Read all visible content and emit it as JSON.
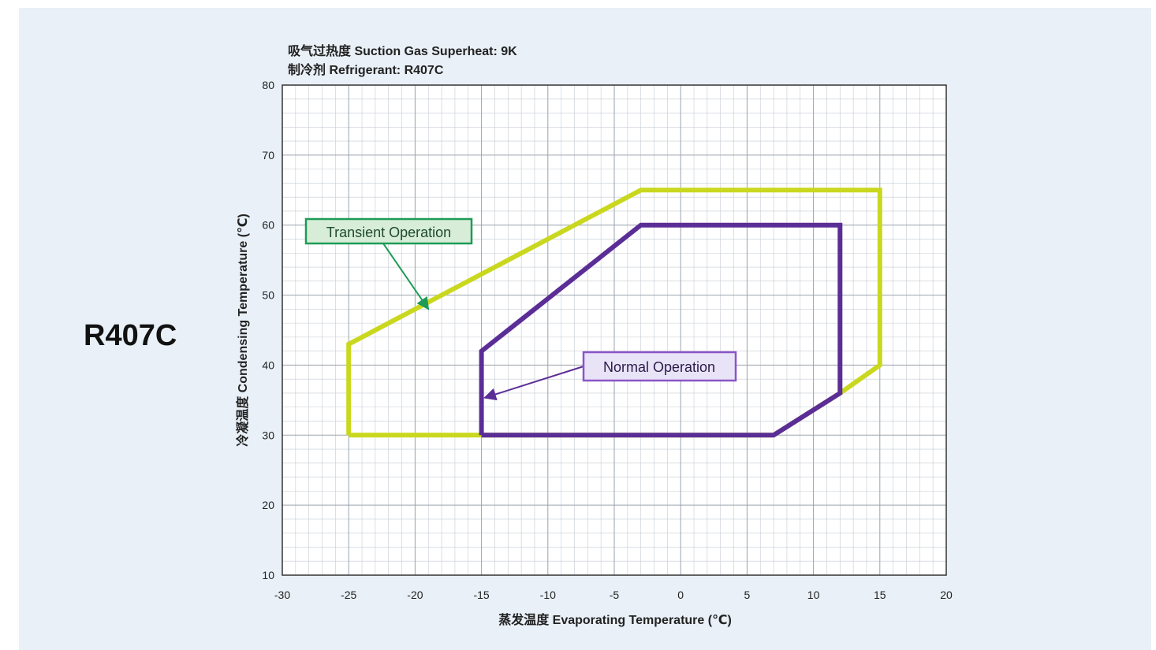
{
  "page": {
    "refrigerant_title": "R407C",
    "header_line1": "吸气过热度  Suction Gas Superheat: 9K",
    "header_line2": "制冷剂  Refrigerant: R407C"
  },
  "colors": {
    "background": "#e9f0f7",
    "transient": "#c9d81e",
    "normal": "#5b2d96",
    "transient_label_border": "#1e9b56",
    "normal_label_border": "#8a55c8"
  },
  "chart_data": {
    "type": "area",
    "xlabel": "蒸发温度  Evaporating Temperature (℃)",
    "ylabel": "冷凝温度  Condensing Temperature (℃)",
    "xlim": [
      -30,
      20
    ],
    "ylim": [
      10,
      80
    ],
    "xticks": [
      -30,
      -25,
      -20,
      -15,
      -10,
      -5,
      0,
      5,
      10,
      15,
      20
    ],
    "yticks": [
      10,
      20,
      30,
      40,
      50,
      60,
      70,
      80
    ],
    "grid": true,
    "series": [
      {
        "name": "Transient Operation",
        "points": [
          [
            -25,
            30
          ],
          [
            -25,
            43
          ],
          [
            -3,
            65
          ],
          [
            15,
            65
          ],
          [
            15,
            40
          ],
          [
            12,
            36
          ],
          [
            7,
            30
          ],
          [
            -25,
            30
          ]
        ]
      },
      {
        "name": "Normal Operation",
        "points": [
          [
            -15,
            30
          ],
          [
            -15,
            42
          ],
          [
            -3,
            60
          ],
          [
            12,
            60
          ],
          [
            12,
            36
          ],
          [
            7,
            30
          ],
          [
            -15,
            30
          ]
        ]
      }
    ],
    "annotations": [
      {
        "text": "Transient Operation",
        "arrow_to": [
          -19,
          48
        ]
      },
      {
        "text": "Normal Operation",
        "arrow_to": [
          -15,
          35
        ]
      }
    ]
  }
}
